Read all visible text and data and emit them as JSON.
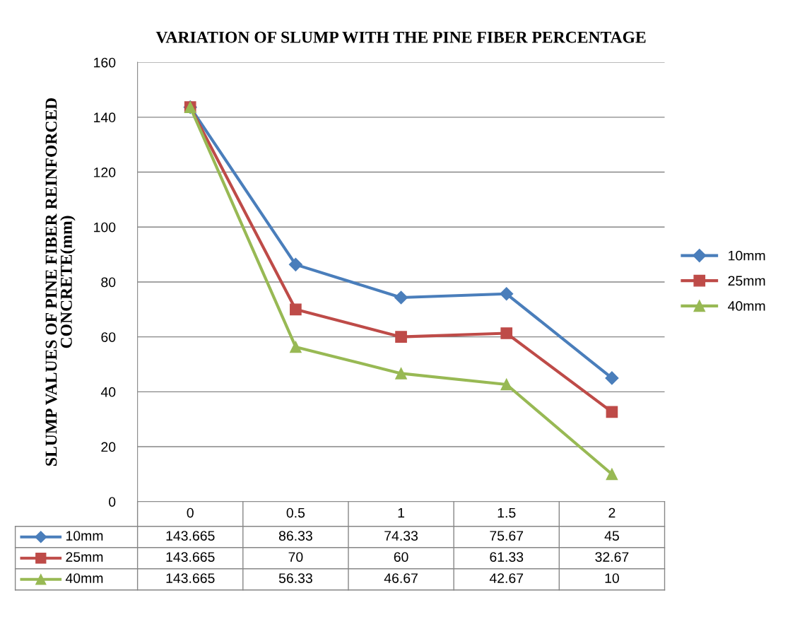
{
  "chart_data": {
    "type": "line",
    "title": "VARIATION OF SLUMP WITH THE PINE FIBER PERCENTAGE",
    "ylabel": "SLUMP VALUES OF PINE FIBER REINFORCED\nCONCRETE(mm)",
    "categories": [
      "0",
      "0.5",
      "1",
      "1.5",
      "2"
    ],
    "series": [
      {
        "name": "10mm",
        "color": "#4a7ebb",
        "marker": "diamond",
        "values": [
          143.665,
          86.33,
          74.33,
          75.67,
          45
        ]
      },
      {
        "name": "25mm",
        "color": "#be4b48",
        "marker": "square",
        "values": [
          143.665,
          70,
          60,
          61.33,
          32.67
        ]
      },
      {
        "name": "40mm",
        "color": "#98b954",
        "marker": "triangle",
        "values": [
          143.665,
          56.33,
          46.67,
          42.67,
          10
        ]
      }
    ],
    "ylim": [
      0,
      160
    ],
    "yticks": [
      0,
      20,
      40,
      60,
      80,
      100,
      120,
      140,
      160
    ],
    "grid": "y",
    "legend": "right",
    "data_labels": true,
    "line_style": "solid"
  }
}
